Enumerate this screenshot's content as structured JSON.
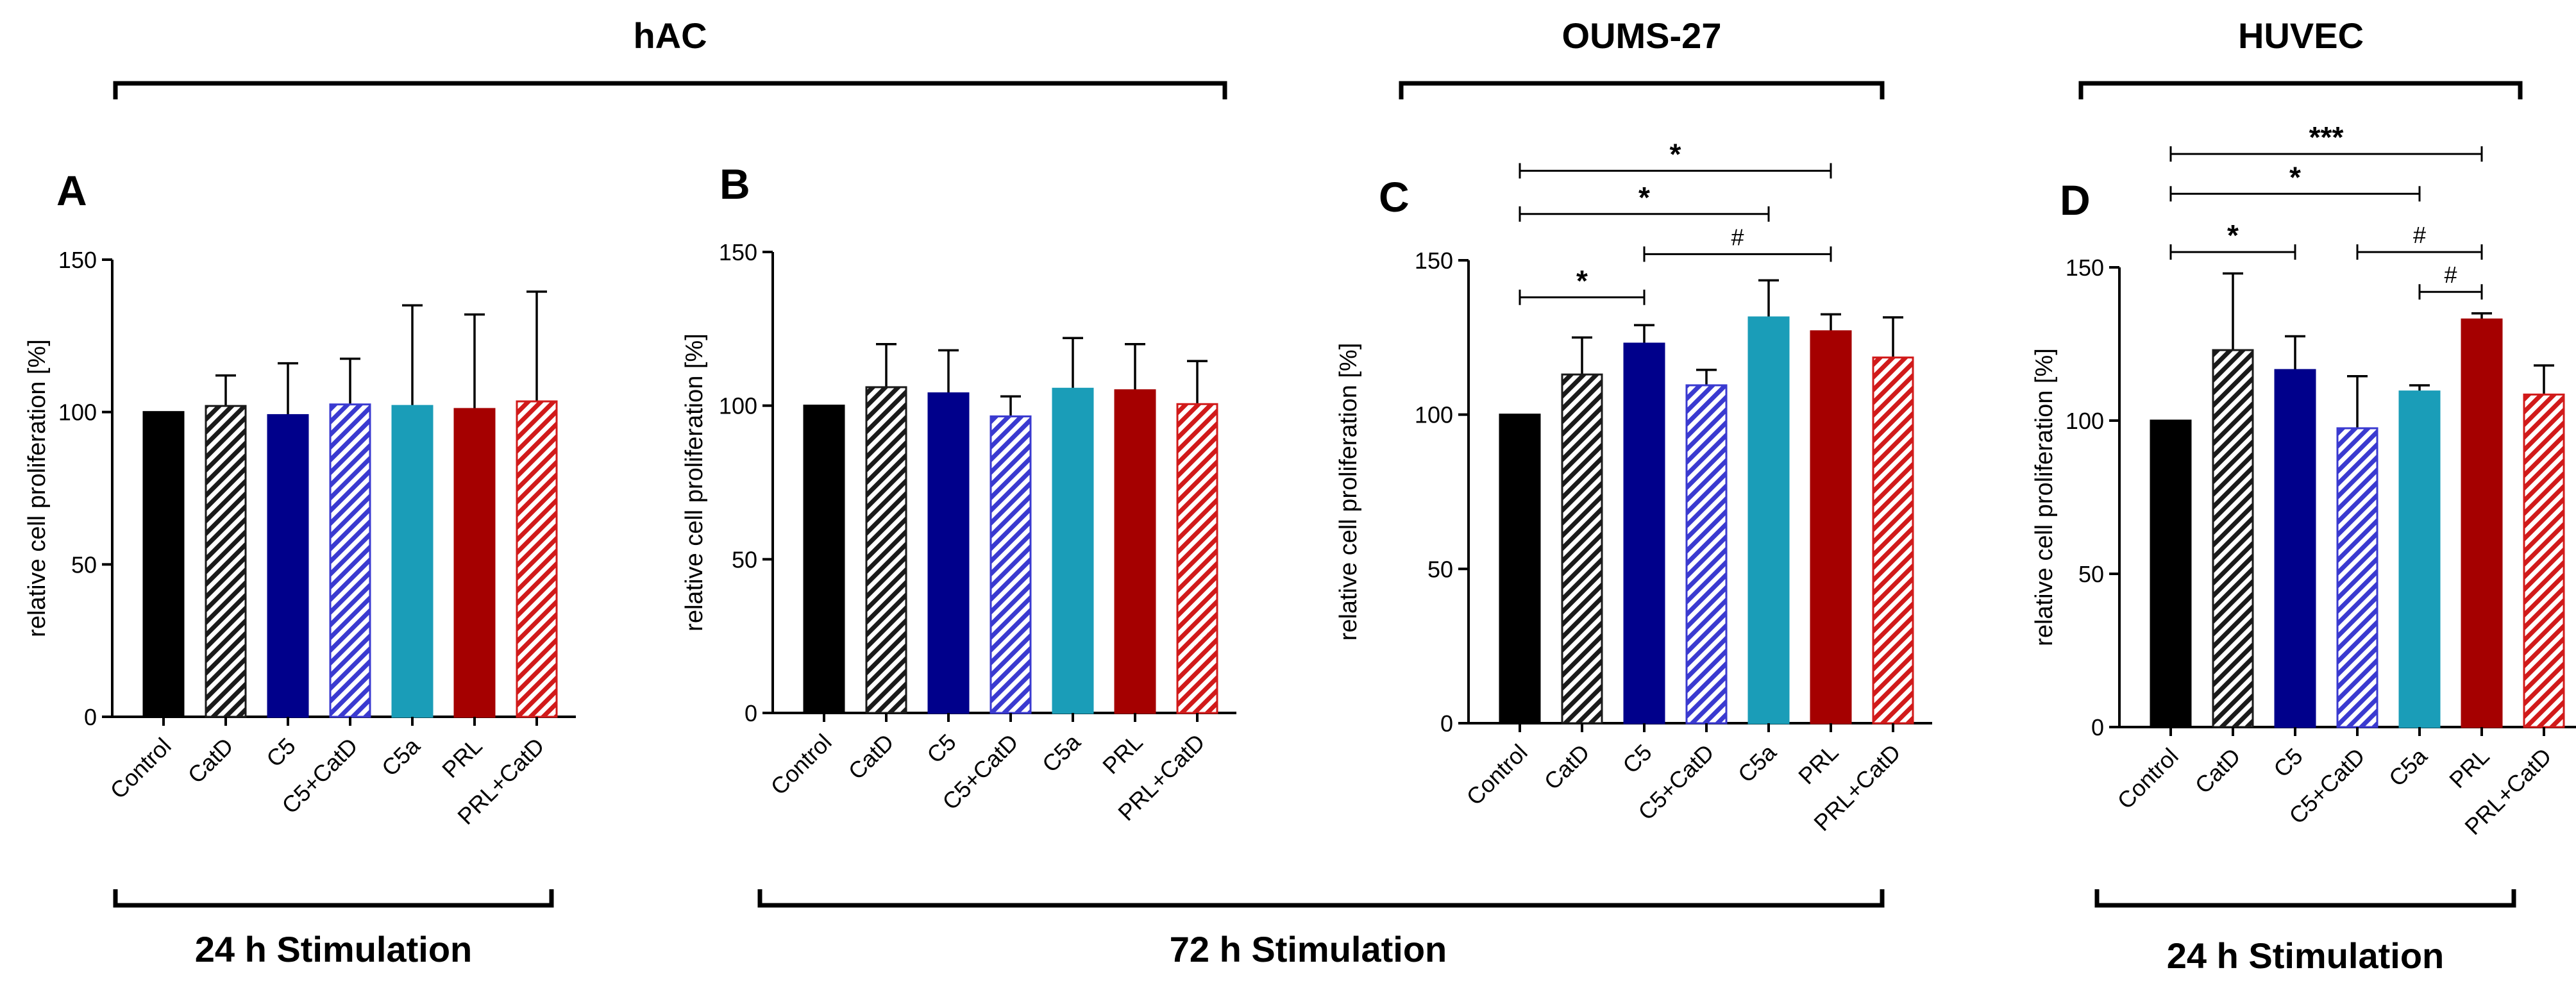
{
  "colors": {
    "control": "#000000",
    "catd": "#1a1a1a",
    "c5": "#00008b",
    "c5_catd": "#3a3ad0",
    "c5a": "#1a9db8",
    "prl": "#a50000",
    "prl_catd": "#d11a1a"
  },
  "groups": [
    {
      "label": "hAC"
    },
    {
      "label": "OUMS-27"
    },
    {
      "label": "HUVEC"
    }
  ],
  "stimulation": [
    {
      "label": "24 h Stimulation"
    },
    {
      "label": "72 h Stimulation"
    },
    {
      "label": "24 h Stimulation"
    }
  ],
  "chart_data": [
    {
      "type": "bar",
      "panel": "A",
      "ylabel": "relative cell proliferation [%]",
      "ylim": [
        0,
        150
      ],
      "yticks": [
        0,
        50,
        100,
        150
      ],
      "categories": [
        "Control",
        "CatD",
        "C5",
        "C5+CatD",
        "C5a",
        "PRL",
        "PRL+CatD"
      ],
      "values": [
        100,
        102,
        99,
        102.5,
        102,
        101,
        103.5
      ],
      "errors": [
        0,
        10,
        17,
        15,
        33,
        31,
        36
      ],
      "patterns": [
        "solid",
        "hatch",
        "solid",
        "hatch",
        "solid",
        "solid",
        "hatch"
      ],
      "color_keys": [
        "control",
        "catd",
        "c5",
        "c5_catd",
        "c5a",
        "prl",
        "prl_catd"
      ],
      "significance": []
    },
    {
      "type": "bar",
      "panel": "B",
      "ylabel": "relative cell proliferation [%]",
      "ylim": [
        0,
        150
      ],
      "yticks": [
        0,
        50,
        100,
        150
      ],
      "categories": [
        "Control",
        "CatD",
        "C5",
        "C5+CatD",
        "C5a",
        "PRL",
        "PRL+CatD"
      ],
      "values": [
        100,
        106,
        104,
        96.5,
        105.5,
        105,
        100.5
      ],
      "errors": [
        0,
        14,
        14,
        6.5,
        16.5,
        15,
        14
      ],
      "patterns": [
        "solid",
        "hatch",
        "solid",
        "hatch",
        "solid",
        "solid",
        "hatch"
      ],
      "color_keys": [
        "control",
        "catd",
        "c5",
        "c5_catd",
        "c5a",
        "prl",
        "prl_catd"
      ],
      "significance": []
    },
    {
      "type": "bar",
      "panel": "C",
      "ylabel": "relative cell proliferation [%]",
      "ylim": [
        0,
        150
      ],
      "yticks": [
        0,
        50,
        100,
        150
      ],
      "categories": [
        "Control",
        "CatD",
        "C5",
        "C5+CatD",
        "C5a",
        "PRL",
        "PRL+CatD"
      ],
      "values": [
        100,
        113,
        123,
        109.5,
        131.5,
        127,
        118.5
      ],
      "errors": [
        0,
        12,
        6,
        5,
        12,
        5.5,
        13
      ],
      "patterns": [
        "solid",
        "hatch",
        "solid",
        "hatch",
        "solid",
        "solid",
        "hatch"
      ],
      "color_keys": [
        "control",
        "catd",
        "c5",
        "c5_catd",
        "c5a",
        "prl",
        "prl_catd"
      ],
      "significance": [
        {
          "from": 0,
          "to": 5,
          "label": "*",
          "y": 179
        },
        {
          "from": 0,
          "to": 4,
          "label": "*",
          "y": 165
        },
        {
          "from": 2,
          "to": 5,
          "label": "#",
          "y": 152
        },
        {
          "from": 0,
          "to": 2,
          "label": "*",
          "y": 138
        }
      ]
    },
    {
      "type": "bar",
      "panel": "D",
      "ylabel": "relative cell proliferation [%]",
      "ylim": [
        0,
        150
      ],
      "yticks": [
        0,
        50,
        100,
        150
      ],
      "categories": [
        "Control",
        "CatD",
        "C5",
        "C5+CatD",
        "C5a",
        "PRL",
        "PRL+CatD"
      ],
      "values": [
        100,
        123,
        116.5,
        97.5,
        109.5,
        133,
        108.5
      ],
      "errors": [
        0,
        25,
        11,
        17,
        2,
        2,
        9.5
      ],
      "patterns": [
        "solid",
        "hatch",
        "solid",
        "hatch",
        "solid",
        "solid",
        "hatch"
      ],
      "color_keys": [
        "control",
        "catd",
        "c5",
        "c5_catd",
        "c5a",
        "prl",
        "prl_catd"
      ],
      "significance": [
        {
          "from": 0,
          "to": 5,
          "label": "***",
          "y": 187
        },
        {
          "from": 0,
          "to": 4,
          "label": "*",
          "y": 174
        },
        {
          "from": 3,
          "to": 5,
          "label": "#",
          "y": 155
        },
        {
          "from": 0,
          "to": 2,
          "label": "*",
          "y": 155
        },
        {
          "from": 4,
          "to": 5,
          "label": "#",
          "y": 142
        }
      ]
    }
  ]
}
